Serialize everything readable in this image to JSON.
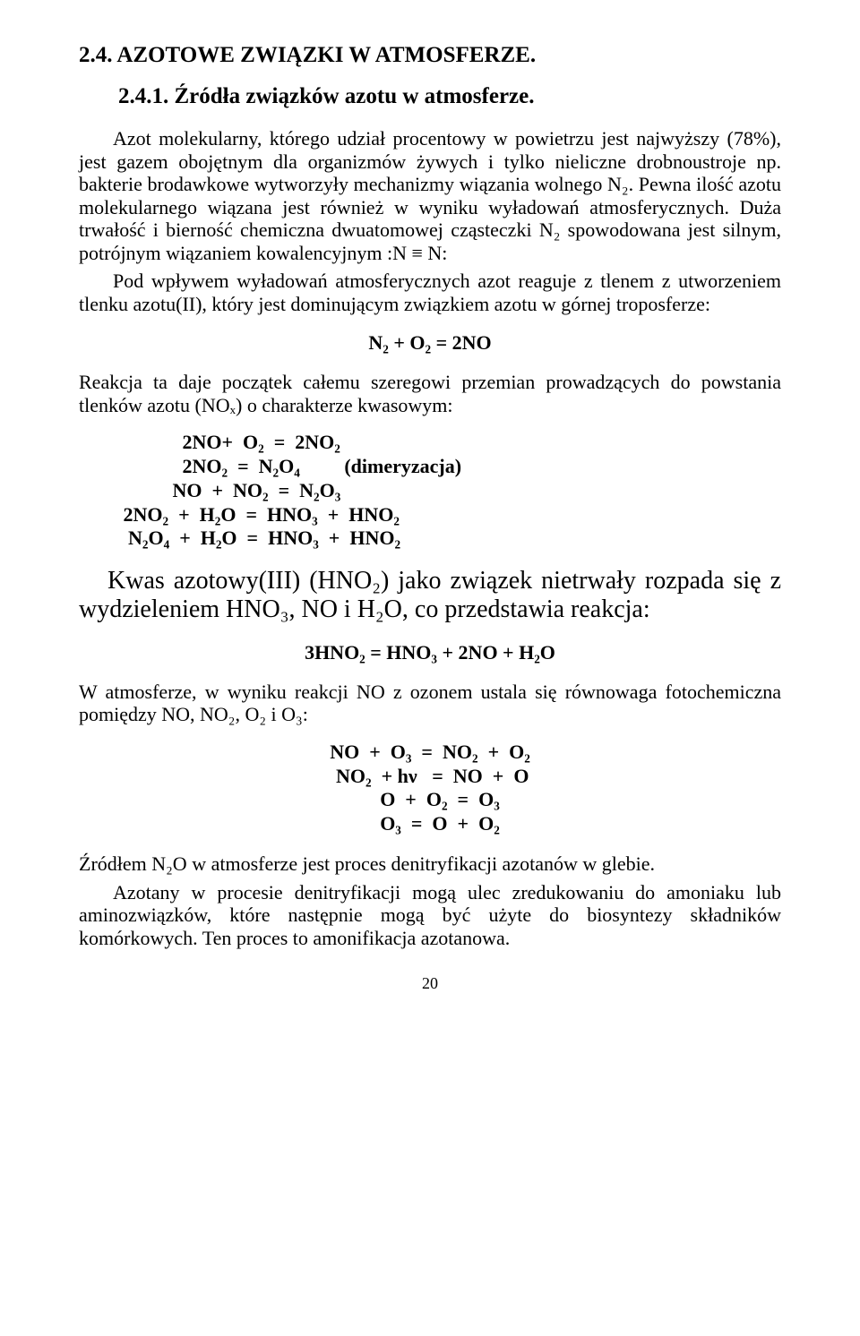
{
  "colors": {
    "background": "#ffffff",
    "text": "#000000"
  },
  "typography": {
    "body_font_family": "Times New Roman",
    "body_fontsize_pt": 17,
    "heading_fontsize_pt": 19,
    "large_text_fontsize_pt": 21,
    "heading_fontweight": "bold"
  },
  "section_heading": "2.4.  AZOTOWE ZWIĄZKI  W ATMOSFERZE.",
  "sub_heading": "2.4.1. Źródła związków azotu w atmosferze.",
  "para1": "Azot molekularny, którego udział procentowy w powietrzu jest najwyższy (78%), jest gazem obojętnym dla organizmów żywych i tylko nieliczne drobnoustroje np. bakterie brodawkowe wytworzyły mechanizmy wiązania wolnego N₂. Pewna ilość azotu molekularnego wiązana jest również w wyniku wyładowań atmosferycznych. Duża trwałość i bierność chemiczna dwuatomowej cząsteczki N₂ spowodowana jest silnym, potrójnym wiązaniem kowalencyjnym :N ≡ N:",
  "para2": "Pod wpływem wyładowań atmosferycznych azot reaguje z tlenem z utworzeniem tlenku azotu(II), który jest dominującym związkiem  azotu w górnej troposferze:",
  "eq1": "N₂  +  O₂  =  2NO",
  "para3": "Reakcja ta daje początek całemu szeregowi przemian prowadzących do powstania tlenków azotu (NOₓ) o charakterze kwasowym:",
  "eq_block1": {
    "line1": "                     2NO+  O₂  =  2NO₂",
    "line2": "                     2NO₂  =  N₂O₄         (dimeryzacja)",
    "line3": "                   NO  +  NO₂  =  N₂O₃",
    "line4": "         2NO₂  +  H₂O  =  HNO₃  +  HNO₂",
    "line5": "          N₂O₄  +  H₂O  =  HNO₃  +  HNO₂"
  },
  "large_para": "Kwas azotowy(III) (HNO₂) jako związek nietrwały rozpada się z wydzieleniem HNO₃, NO i H₂O, co przedstawia reakcja:",
  "eq2": "3HNO₂  =  HNO₃ +  2NO + H₂O",
  "para4": "W atmosferze, w wyniku reakcji NO z ozonem ustala się równowaga fotochemiczna pomiędzy NO, NO₂, O₂ i O₃:",
  "eq_block2": {
    "line1": "NO  +  O₃  =  NO₂  +  O₂",
    "line2": " NO₂  + hν   =  NO  +  O",
    "line3": "    O  +  O₂  =  O₃",
    "line4": "    O₃  =  O  +  O₂"
  },
  "para5": "Źródłem N₂O w atmosferze jest proces denitryfikacji azotanów w glebie.",
  "para6": "Azotany w procesie denitryfikacji mogą ulec zredukowaniu do amoniaku lub aminozwiązków, które następnie mogą być użyte do biosyntezy składników komórkowych. Ten proces to amonifikacja azotanowa.",
  "page_number": "20"
}
